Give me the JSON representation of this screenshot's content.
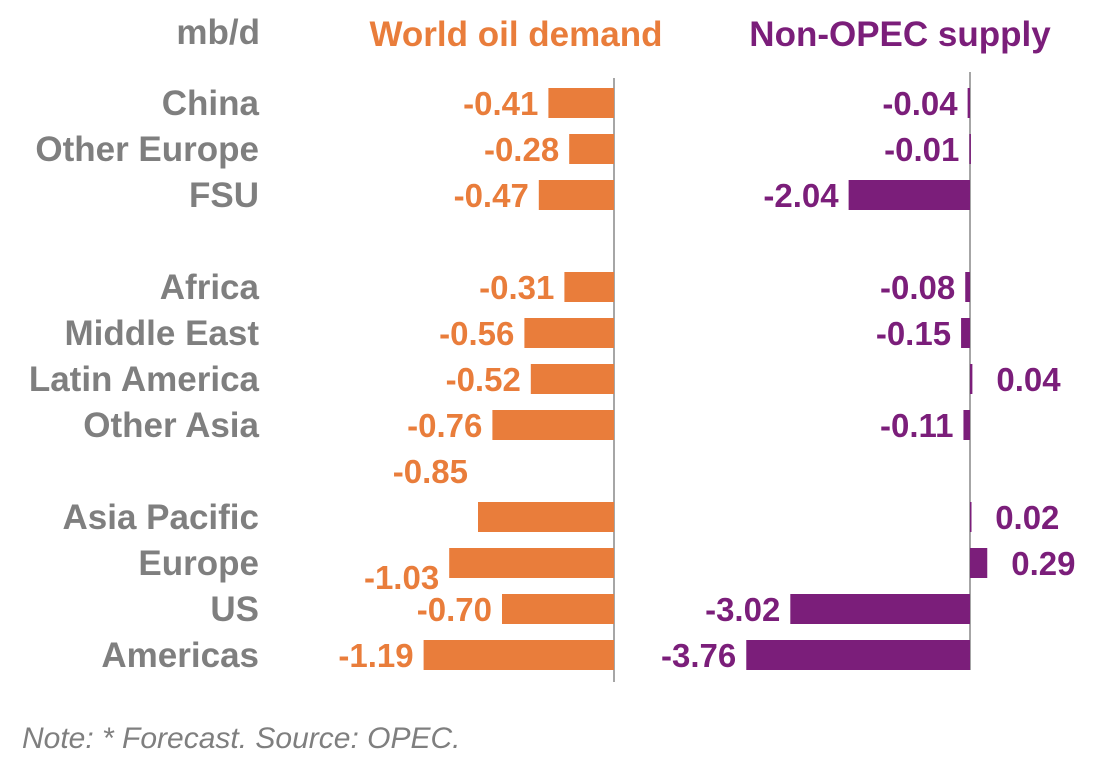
{
  "chart_data": {
    "type": "bar",
    "orientation": "horizontal",
    "unit_label": "mb/d",
    "categories": [
      "China",
      "Other Europe",
      "FSU",
      "Africa",
      "Middle East",
      "Latin America",
      "Other Asia",
      "Asia Pacific",
      "Europe",
      "US",
      "Americas"
    ],
    "series": [
      {
        "name": "World oil demand",
        "color": "#e97d3b",
        "values": [
          -0.41,
          -0.28,
          -0.47,
          -0.31,
          -0.56,
          -0.52,
          -0.76,
          -0.85,
          -1.03,
          -0.7,
          -1.19
        ],
        "labels": [
          "-0.41",
          "-0.28",
          "-0.47",
          "-0.31",
          "-0.56",
          "-0.52",
          "-0.76",
          "-0.85",
          "-1.03",
          "-0.70",
          "-1.19"
        ]
      },
      {
        "name": "Non-OPEC supply",
        "color": "#7b1e7a",
        "values": [
          -0.04,
          -0.01,
          -2.04,
          -0.08,
          -0.15,
          0.04,
          -0.11,
          0.02,
          0.29,
          -3.02,
          -3.76
        ],
        "labels": [
          "-0.04",
          "-0.01",
          "-2.04",
          "-0.08",
          "-0.15",
          "0.04",
          "-0.11",
          "0.02",
          "0.29",
          "-3.02",
          "-3.76"
        ]
      }
    ],
    "note": "Note: * Forecast. Source: OPEC."
  }
}
